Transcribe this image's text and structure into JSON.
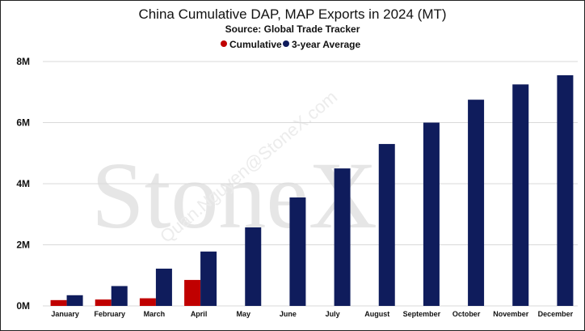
{
  "chart_data": {
    "type": "bar",
    "title": "China Cumulative DAP, MAP Exports in 2024 (MT)",
    "subtitle": "Source: Global Trade Tracker",
    "categories": [
      "January",
      "February",
      "March",
      "April",
      "May",
      "June",
      "July",
      "August",
      "September",
      "October",
      "November",
      "December"
    ],
    "series": [
      {
        "name": "Cumulative",
        "color": "#c00000",
        "values": [
          190000,
          210000,
          250000,
          850000,
          null,
          null,
          null,
          null,
          null,
          null,
          null,
          null
        ]
      },
      {
        "name": "3-year Average",
        "color": "#0f1c5c",
        "values": [
          350000,
          650000,
          1220000,
          1780000,
          2570000,
          3550000,
          4500000,
          5300000,
          6000000,
          6750000,
          7250000,
          7550000
        ]
      }
    ],
    "y_ticks": [
      "0M",
      "2M",
      "4M",
      "6M",
      "8M"
    ],
    "ylim": [
      0,
      8000000
    ],
    "grid": true,
    "legend_position": "top-center",
    "watermark": {
      "brand": "StoneX",
      "email": "Quan.Nguyen@StoneX.com"
    }
  }
}
